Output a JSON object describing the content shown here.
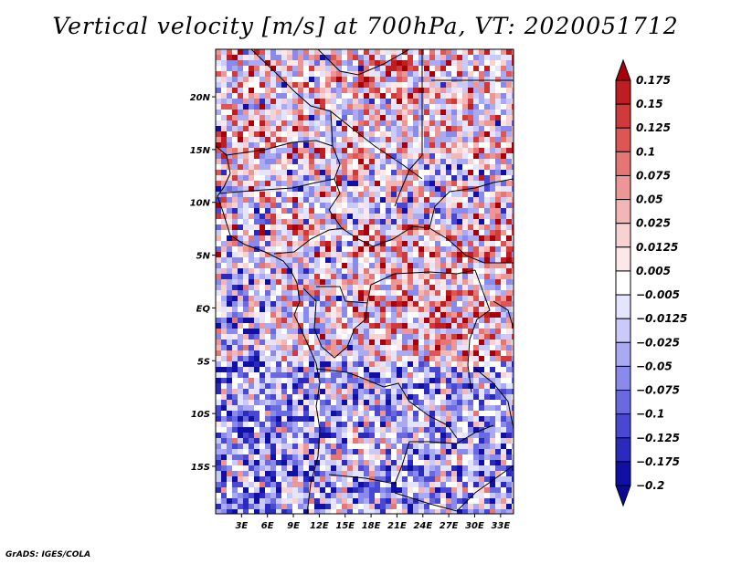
{
  "title": "Vertical velocity [m/s] at 700hPa, VT: 2020051712",
  "credit": "GrADS: IGES/COLA",
  "map": {
    "lat_range": [
      -19.5,
      24.5
    ],
    "lon_range": [
      0,
      34.5
    ],
    "lat_ticks": [
      "20N",
      "15N",
      "10N",
      "5N",
      "EQ",
      "5S",
      "10S",
      "15S"
    ],
    "lon_ticks": [
      "3E",
      "6E",
      "9E",
      "12E",
      "15E",
      "18E",
      "21E",
      "24E",
      "27E",
      "30E",
      "33E"
    ]
  },
  "colorbar": {
    "labels": [
      "0.175",
      "0.15",
      "0.125",
      "0.1",
      "0.075",
      "0.05",
      "0.025",
      "0.0125",
      "0.005",
      "-0.005",
      "-0.0125",
      "-0.025",
      "-0.05",
      "-0.075",
      "-0.1",
      "-0.125",
      "-0.175",
      "-0.2"
    ],
    "colors": [
      "#a8000a",
      "#be1e22",
      "#cf3a3a",
      "#dc5656",
      "#e47676",
      "#ec9696",
      "#f3b6b6",
      "#f8d2d2",
      "#fce8e8",
      "#ffffff",
      "#e4e4fc",
      "#cacaf8",
      "#aaaaf2",
      "#8a8aea",
      "#6a6ae0",
      "#4848d2",
      "#2a2abc",
      "#1010a4",
      "#0a0a96"
    ]
  }
}
